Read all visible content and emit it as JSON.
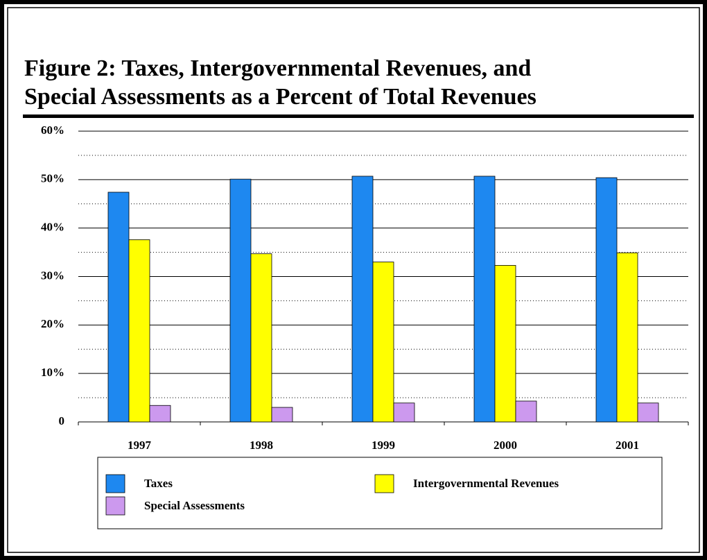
{
  "chart_data": {
    "type": "bar",
    "title": [
      "Figure 2: Taxes, Intergovernmental Revenues, and",
      "Special Assessments as a Percent of Total Revenues"
    ],
    "categories": [
      "1997",
      "1998",
      "1999",
      "2000",
      "2001"
    ],
    "series": [
      {
        "name": "Taxes",
        "color": "#1e88f0",
        "values": [
          47.4,
          50.1,
          50.7,
          50.7,
          50.4
        ]
      },
      {
        "name": "Intergovernmental Revenues",
        "color": "#ffff00",
        "values": [
          37.6,
          34.7,
          33.0,
          32.3,
          34.9
        ]
      },
      {
        "name": "Special Assessments",
        "color": "#cc99ee",
        "values": [
          3.4,
          3.0,
          3.9,
          4.3,
          3.9
        ]
      }
    ],
    "ylim": [
      0,
      60
    ],
    "yticks": [
      0,
      {
        "value": 10,
        "label": "10%"
      },
      {
        "value": 20,
        "label": "20%"
      },
      {
        "value": 30,
        "label": "30%"
      },
      {
        "value": 40,
        "label": "40%"
      },
      {
        "value": 50,
        "label": "50%"
      },
      {
        "value": 60,
        "label": "60%"
      }
    ],
    "minor_yticks": [
      5,
      15,
      25,
      35,
      45,
      55
    ],
    "grid": true,
    "legend": "bottom"
  }
}
